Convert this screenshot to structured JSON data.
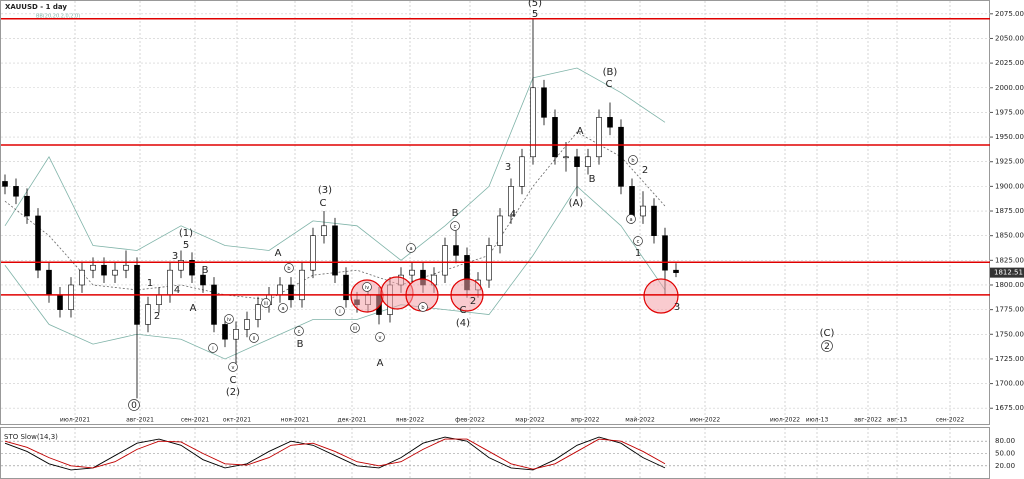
{
  "chart_data": {
    "type": "candlestick",
    "title": "XAUUSD - 1 day",
    "subtitle": "BB(20,20.2,0,2.0)",
    "candles": [
      [
        1905,
        1912,
        1892,
        1900
      ],
      [
        1900,
        1908,
        1882,
        1890
      ],
      [
        1890,
        1898,
        1862,
        1870
      ],
      [
        1870,
        1878,
        1807,
        1815
      ],
      [
        1815,
        1823,
        1782,
        1790
      ],
      [
        1790,
        1798,
        1767,
        1775
      ],
      [
        1775,
        1808,
        1767,
        1800
      ],
      [
        1800,
        1823,
        1792,
        1815
      ],
      [
        1815,
        1828,
        1807,
        1820
      ],
      [
        1820,
        1828,
        1802,
        1810
      ],
      [
        1810,
        1823,
        1802,
        1815
      ],
      [
        1815,
        1835,
        1807,
        1820
      ],
      [
        1820,
        1828,
        1685,
        1760
      ],
      [
        1760,
        1788,
        1752,
        1780
      ],
      [
        1780,
        1798,
        1772,
        1790
      ],
      [
        1790,
        1823,
        1782,
        1815
      ],
      [
        1815,
        1835,
        1807,
        1825
      ],
      [
        1825,
        1833,
        1802,
        1810
      ],
      [
        1810,
        1818,
        1792,
        1800
      ],
      [
        1800,
        1808,
        1752,
        1760
      ],
      [
        1760,
        1768,
        1737,
        1745
      ],
      [
        1745,
        1763,
        1720,
        1755
      ],
      [
        1755,
        1773,
        1747,
        1765
      ],
      [
        1765,
        1788,
        1757,
        1780
      ],
      [
        1780,
        1798,
        1772,
        1790
      ],
      [
        1790,
        1808,
        1782,
        1800
      ],
      [
        1800,
        1808,
        1777,
        1785
      ],
      [
        1785,
        1823,
        1777,
        1815
      ],
      [
        1815,
        1858,
        1807,
        1850
      ],
      [
        1850,
        1875,
        1842,
        1860
      ],
      [
        1860,
        1868,
        1802,
        1810
      ],
      [
        1810,
        1818,
        1777,
        1785
      ],
      [
        1785,
        1793,
        1772,
        1780
      ],
      [
        1780,
        1798,
        1772,
        1790
      ],
      [
        1790,
        1798,
        1760,
        1770
      ],
      [
        1770,
        1808,
        1762,
        1800
      ],
      [
        1800,
        1818,
        1792,
        1810
      ],
      [
        1810,
        1823,
        1802,
        1815
      ],
      [
        1815,
        1823,
        1792,
        1800
      ],
      [
        1800,
        1818,
        1792,
        1810
      ],
      [
        1810,
        1848,
        1802,
        1840
      ],
      [
        1840,
        1855,
        1822,
        1830
      ],
      [
        1830,
        1838,
        1787,
        1795
      ],
      [
        1795,
        1813,
        1787,
        1805
      ],
      [
        1805,
        1848,
        1797,
        1840
      ],
      [
        1840,
        1878,
        1832,
        1870
      ],
      [
        1870,
        1908,
        1862,
        1900
      ],
      [
        1900,
        1938,
        1892,
        1930
      ],
      [
        1930,
        2070,
        1922,
        2000
      ],
      [
        2000,
        2008,
        1962,
        1970
      ],
      [
        1970,
        1978,
        1922,
        1930
      ],
      [
        1930,
        1945,
        1915,
        1930
      ],
      [
        1930,
        1938,
        1890,
        1920
      ],
      [
        1920,
        1938,
        1912,
        1930
      ],
      [
        1930,
        1978,
        1922,
        1970
      ],
      [
        1970,
        1985,
        1952,
        1960
      ],
      [
        1960,
        1968,
        1892,
        1900
      ],
      [
        1900,
        1908,
        1862,
        1870
      ],
      [
        1870,
        1895,
        1862,
        1880
      ],
      [
        1880,
        1888,
        1842,
        1850
      ],
      [
        1850,
        1858,
        1790,
        1815
      ],
      [
        1815,
        1822,
        1808,
        1812.51
      ]
    ],
    "up_color": "#ffffff",
    "down_color": "#000000",
    "bands": {
      "x": [
        0,
        4,
        8,
        12,
        16,
        20,
        24,
        28,
        32,
        36,
        40,
        44,
        48,
        52,
        56,
        60
      ],
      "color": "#7fb3a8",
      "upper": [
        1860,
        1930,
        1840,
        1835,
        1860,
        1840,
        1835,
        1865,
        1860,
        1825,
        1860,
        1900,
        2010,
        2020,
        1995,
        1965
      ],
      "middle": [
        1885,
        1850,
        1800,
        1795,
        1800,
        1790,
        1785,
        1810,
        1815,
        1800,
        1815,
        1830,
        1900,
        1955,
        1930,
        1880
      ],
      "lower": [
        1820,
        1760,
        1740,
        1750,
        1745,
        1725,
        1745,
        1765,
        1765,
        1780,
        1775,
        1770,
        1830,
        1900,
        1860,
        1795
      ]
    },
    "ylim": [
      1658,
      2089
    ],
    "yticks": [
      {
        "value": 1675,
        "label": "1675.00"
      },
      {
        "value": 1700,
        "label": "1700.00"
      },
      {
        "value": 1725,
        "label": "1725.00"
      },
      {
        "value": 1750,
        "label": "1750.00"
      },
      {
        "value": 1775,
        "label": "1775.00"
      },
      {
        "value": 1800,
        "label": "1800.00"
      },
      {
        "value": 1825,
        "label": "1825.00"
      },
      {
        "value": 1850,
        "label": "1850.00"
      },
      {
        "value": 1875,
        "label": "1875.00"
      },
      {
        "value": 1900,
        "label": "1900.00"
      },
      {
        "value": 1925,
        "label": "1925.00"
      },
      {
        "value": 1950,
        "label": "1950.00"
      },
      {
        "value": 1975,
        "label": "1975.00"
      },
      {
        "value": 2000,
        "label": "2000.00"
      },
      {
        "value": 2025,
        "label": "2025.00"
      },
      {
        "value": 2050,
        "label": "2050.00"
      },
      {
        "value": 2075,
        "label": "2075.00"
      }
    ],
    "x_labels": [
      "июл-2021",
      "авг-2021",
      "сен-2021",
      "окт-2021",
      "ноя-2021",
      "дек-2021",
      "янв-2022",
      "фев-2022",
      "мар-2022",
      "апр-2022",
      "май-2022",
      "июн-2022",
      "июл-2022",
      "июл-13",
      "авг-2022",
      "авг-13",
      "сен-2022"
    ],
    "levels": [
      2070,
      1942,
      1823,
      1790
    ],
    "level_color": "#e00000",
    "last_price": {
      "value": 1812.51,
      "label": "1812.51"
    },
    "wave_labels": [
      "(5)",
      "5",
      "(B)",
      "C",
      "A",
      "B",
      "(A)",
      "3",
      "4",
      "2",
      "1",
      "3",
      "(3)",
      "C",
      "(1)",
      "5",
      "3",
      "4",
      "B",
      "A",
      "1",
      "2",
      "A",
      "B",
      "(2)",
      "C",
      "B",
      "(4)",
      "C",
      "2",
      "A",
      "(C)"
    ],
    "circled_labels": [
      "0",
      "i",
      "iv",
      "v",
      "a",
      "b",
      "c",
      "i",
      "iii",
      "iv",
      "v",
      "a",
      "b",
      "c",
      "a",
      "b",
      "c",
      "ii",
      "iii",
      "2"
    ],
    "stochastic": {
      "title": "STO Slow(14,3)",
      "ylim": [
        -12,
        112
      ],
      "yticks": [
        {
          "value": 80,
          "label": "80.00"
        },
        {
          "value": 50,
          "label": "50.00"
        },
        {
          "value": 20,
          "label": "20.00"
        }
      ],
      "x": [
        0,
        2,
        4,
        6,
        8,
        10,
        12,
        14,
        16,
        18,
        20,
        22,
        24,
        26,
        28,
        30,
        32,
        34,
        36,
        38,
        40,
        42,
        44,
        46,
        48,
        50,
        52,
        54,
        56,
        58,
        60
      ],
      "series": [
        {
          "name": "%K",
          "color": "#000000",
          "values": [
            75,
            55,
            25,
            10,
            15,
            45,
            75,
            85,
            70,
            35,
            15,
            25,
            55,
            80,
            70,
            45,
            20,
            15,
            40,
            75,
            90,
            80,
            40,
            15,
            10,
            35,
            70,
            90,
            75,
            40,
            15
          ]
        },
        {
          "name": "%D",
          "color": "#c00000",
          "values": [
            80,
            65,
            40,
            20,
            15,
            30,
            60,
            80,
            78,
            50,
            25,
            22,
            40,
            70,
            75,
            55,
            30,
            20,
            30,
            60,
            85,
            85,
            55,
            25,
            12,
            25,
            55,
            85,
            80,
            55,
            25
          ]
        }
      ]
    }
  }
}
